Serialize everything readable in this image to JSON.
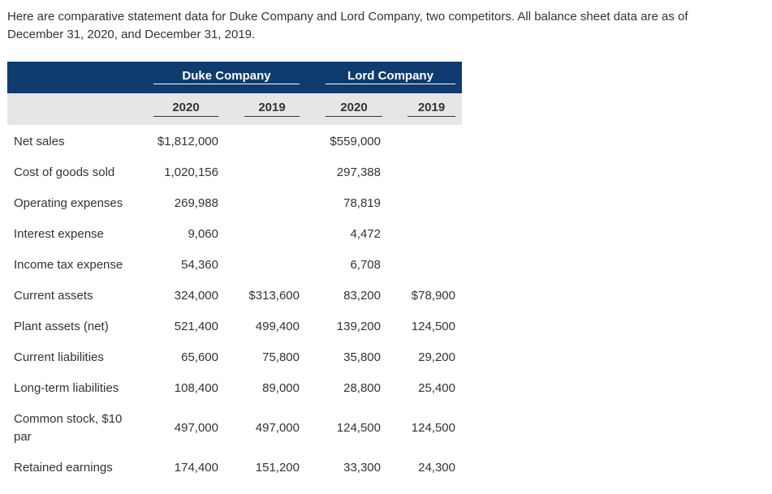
{
  "intro": "Here are comparative statement data for Duke Company and Lord Company, two competitors. All balance sheet data are as of December 31, 2020, and December 31, 2019.",
  "header": {
    "company1": "Duke Company",
    "company2": "Lord Company",
    "years": [
      "2020",
      "2019",
      "2020",
      "2019"
    ]
  },
  "colors": {
    "header_bg": "#0f3b6e",
    "subheader_bg": "#e6e6e6"
  },
  "rows": [
    {
      "label": "Net sales",
      "values": [
        "$1,812,000",
        "",
        "$559,000",
        ""
      ]
    },
    {
      "label": "Cost of goods sold",
      "values": [
        "1,020,156",
        "",
        "297,388",
        ""
      ]
    },
    {
      "label": "Operating expenses",
      "values": [
        "269,988",
        "",
        "78,819",
        ""
      ]
    },
    {
      "label": "Interest expense",
      "values": [
        "9,060",
        "",
        "4,472",
        ""
      ]
    },
    {
      "label": "Income tax expense",
      "values": [
        "54,360",
        "",
        "6,708",
        ""
      ]
    },
    {
      "label": "Current assets",
      "values": [
        "324,000",
        "$313,600",
        "83,200",
        "$78,900"
      ]
    },
    {
      "label": "Plant assets (net)",
      "values": [
        "521,400",
        "499,400",
        "139,200",
        "124,500"
      ]
    },
    {
      "label": "Current liabilities",
      "values": [
        "65,600",
        "75,800",
        "35,800",
        "29,200"
      ]
    },
    {
      "label": "Long-term liabilities",
      "values": [
        "108,400",
        "89,000",
        "28,800",
        "25,400"
      ]
    },
    {
      "label": "Common stock, $10 par",
      "values": [
        "497,000",
        "497,000",
        "124,500",
        "124,500"
      ]
    },
    {
      "label": "Retained earnings",
      "values": [
        "174,400",
        "151,200",
        "33,300",
        "24,300"
      ]
    }
  ]
}
